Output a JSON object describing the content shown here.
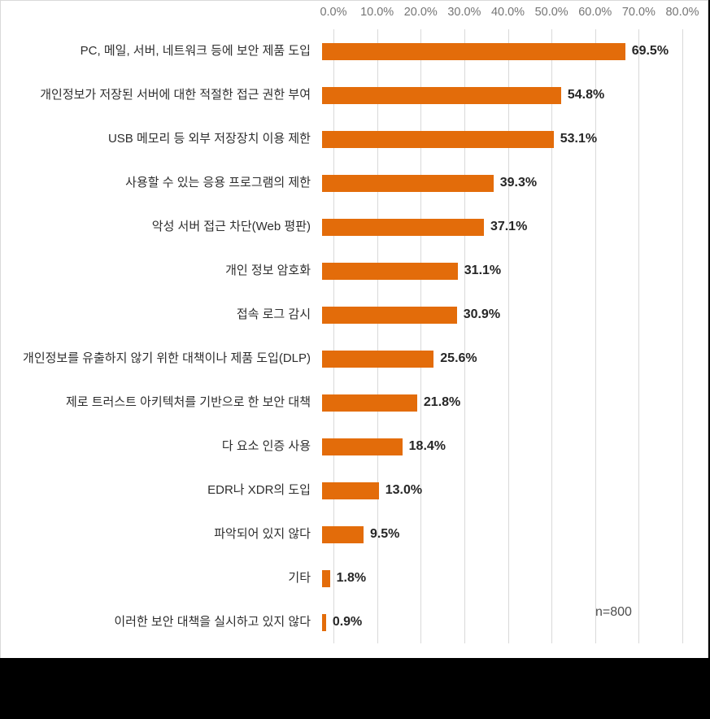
{
  "chart_data": {
    "type": "bar",
    "orientation": "horizontal",
    "title": "",
    "categories": [
      "PC, 메일, 서버, 네트워크 등에 보안 제품 도입",
      "개인정보가 저장된 서버에 대한 적절한 접근 권한 부여",
      "USB 메모리 등 외부 저장장치 이용 제한",
      "사용할 수 있는 응용 프로그램의 제한",
      "악성 서버 접근 차단(Web 평판)",
      "개인 정보 암호화",
      "접속 로그 감시",
      "개인정보를 유출하지 않기 위한 대책이나 제품 도입(DLP)",
      "제로 트러스트 아키텍처를 기반으로 한 보안 대책",
      "다 요소 인증 사용",
      "EDR나 XDR의 도입",
      "파악되어 있지 않다",
      "기타",
      "이러한 보안 대책을 실시하고 있지 않다"
    ],
    "values": [
      69.5,
      54.8,
      53.1,
      39.3,
      37.1,
      31.1,
      30.9,
      25.6,
      21.8,
      18.4,
      13.0,
      9.5,
      1.8,
      0.9
    ],
    "value_labels": [
      "69.5%",
      "54.8%",
      "53.1%",
      "39.3%",
      "37.1%",
      "31.1%",
      "30.9%",
      "25.6%",
      "21.8%",
      "18.4%",
      "13.0%",
      "9.5%",
      "1.8%",
      "0.9%"
    ],
    "x_axis": {
      "min": 0,
      "max": 80,
      "step": 10,
      "tick_labels": [
        "0.0%",
        "10.0%",
        "20.0%",
        "30.0%",
        "40.0%",
        "50.0%",
        "60.0%",
        "70.0%",
        "80.0%"
      ]
    },
    "annotation": "n=800",
    "grid": "vertical-on",
    "legend": "none",
    "colors": {
      "bar": "#e36c0a",
      "gridline": "#d9d9d9",
      "axis_text": "#757575",
      "category_text": "#2e2e2e",
      "value_text": "#262626",
      "annotation_text": "#4d4d4d",
      "background": "#ffffff",
      "letterbox": "#000000"
    }
  }
}
